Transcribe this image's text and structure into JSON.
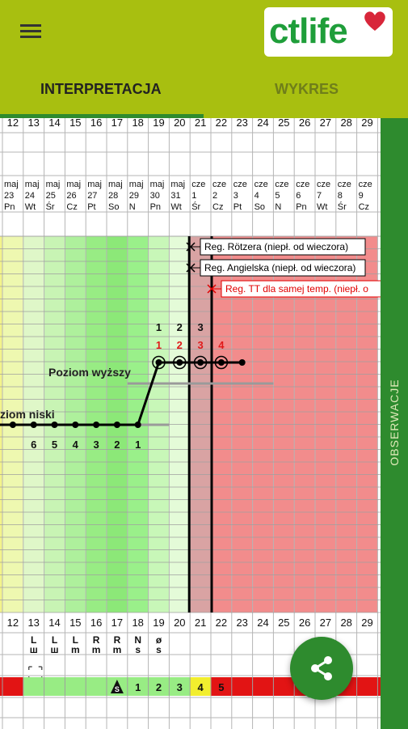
{
  "app": {
    "logo_text": "ctlife",
    "tabs": [
      "INTERPRETACJA",
      "WYKRES"
    ],
    "sidebar_label": "OBSERWACJE",
    "logo_colors": {
      "text": "#1f9e3a",
      "heart": "#d8263a"
    },
    "bar_color": "#a8bf10",
    "accent_color": "#2e8b2e"
  },
  "chart": {
    "cycle_days": [
      "12",
      "13",
      "14",
      "15",
      "16",
      "17",
      "18",
      "19",
      "20",
      "21",
      "22",
      "23",
      "24",
      "25",
      "26",
      "27",
      "28",
      "29"
    ],
    "months": [
      "maj",
      "maj",
      "maj",
      "maj",
      "maj",
      "maj",
      "maj",
      "maj",
      "maj",
      "cze",
      "cze",
      "cze",
      "cze",
      "cze",
      "cze",
      "cze",
      "cze",
      "cze"
    ],
    "dates": [
      "23",
      "24",
      "25",
      "26",
      "27",
      "28",
      "29",
      "30",
      "31",
      "1",
      "2",
      "3",
      "4",
      "5",
      "6",
      "7",
      "8",
      "9"
    ],
    "weekdays": [
      "Pn",
      "Wt",
      "Śr",
      "Cz",
      "Pt",
      "So",
      "N",
      "Pn",
      "Wt",
      "Śr",
      "Cz",
      "Pt",
      "So",
      "N",
      "Pn",
      "Wt",
      "Śr",
      "Cz"
    ],
    "rules": [
      {
        "label": "Reg. Rötzera (niepł. od wieczora)",
        "color": "#000000"
      },
      {
        "label": "Reg. Angielska (niepł. od wieczora)",
        "color": "#000000"
      },
      {
        "label": "Reg. TT dla samej temp. (niepł. o",
        "color": "#e00000"
      }
    ],
    "upper_level_label": "Poziom wyższy",
    "lower_level_label": "ziom niski",
    "low_phase_counts": [
      "6",
      "5",
      "4",
      "3",
      "2",
      "1"
    ],
    "high_count_black": [
      "1",
      "2",
      "3"
    ],
    "high_count_red": [
      "1",
      "2",
      "3",
      "4"
    ],
    "mucus_symbols": [
      {
        "top": "L",
        "bottom": "ш"
      },
      {
        "top": "L",
        "bottom": "ш"
      },
      {
        "top": "L",
        "bottom": "m"
      },
      {
        "top": "R",
        "bottom": "m"
      },
      {
        "top": "R",
        "bottom": "m"
      },
      {
        "top": "N",
        "bottom": "s"
      },
      {
        "top": "ø",
        "bottom": "s"
      }
    ],
    "peak_count": [
      "1",
      "2",
      "3",
      "4",
      "5"
    ],
    "peak_day_marker": "S"
  }
}
